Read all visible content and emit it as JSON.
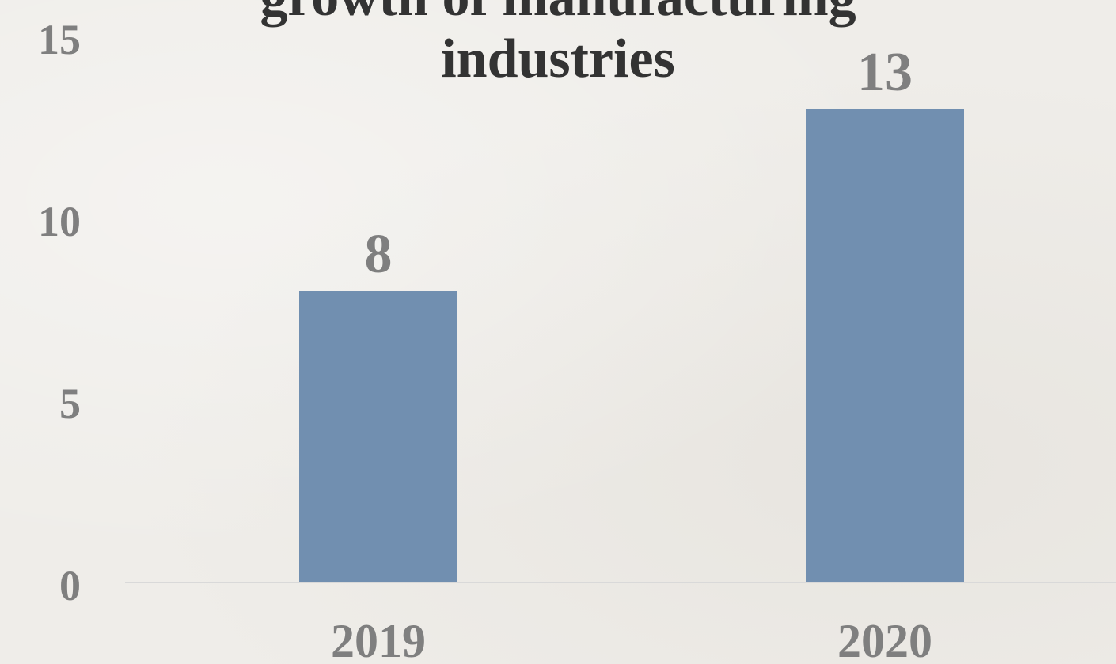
{
  "chart_data": {
    "type": "bar",
    "title_lines": [
      "growth of manufacturing",
      "industries"
    ],
    "categories": [
      "2019",
      "2020"
    ],
    "values": [
      8,
      13
    ],
    "data_labels": [
      "8",
      "13"
    ],
    "y_ticks": [
      "0",
      "5",
      "10",
      "15"
    ],
    "ylim": [
      0,
      15
    ],
    "xlabel": "",
    "ylabel": "",
    "grid": false,
    "colors": {
      "bar": "#718fb0",
      "axis_text": "#7f7f7f",
      "title": "#333333",
      "baseline": "#d9d9d9"
    }
  }
}
